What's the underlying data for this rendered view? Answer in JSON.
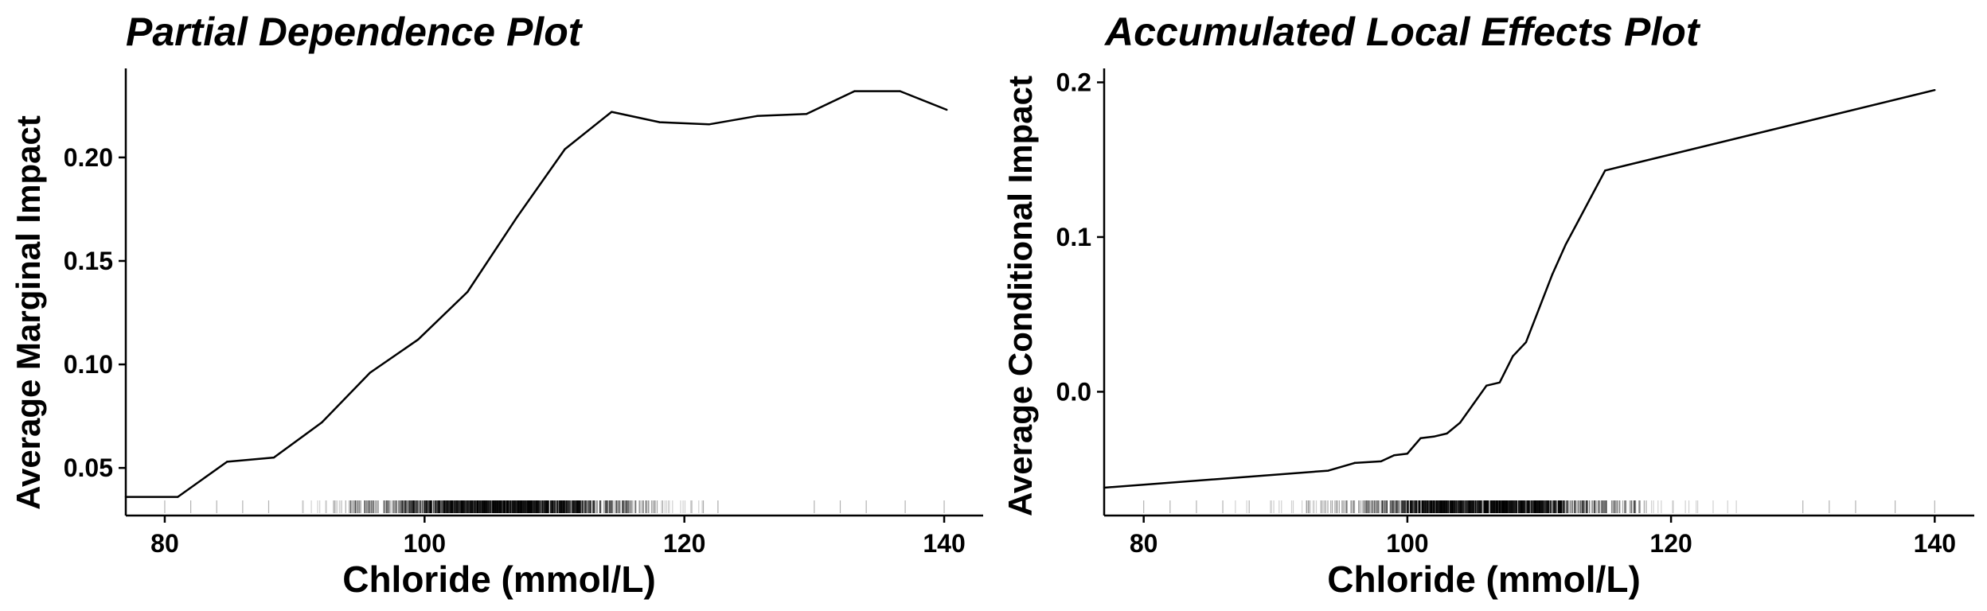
{
  "chart_data": [
    {
      "type": "line",
      "title": "Partial Dependence Plot",
      "xlabel": "Chloride (mmol/L)",
      "ylabel": "Average Marginal Impact",
      "xlim": [
        77,
        143
      ],
      "ylim": [
        0.027,
        0.243
      ],
      "xticks": [
        {
          "value": 80,
          "label": "80"
        },
        {
          "value": 100,
          "label": "100"
        },
        {
          "value": 120,
          "label": "120"
        },
        {
          "value": 140,
          "label": "140"
        }
      ],
      "yticks": [
        {
          "value": 0.05,
          "label": "0.05"
        },
        {
          "value": 0.1,
          "label": "0.10"
        },
        {
          "value": 0.15,
          "label": "0.15"
        },
        {
          "value": 0.2,
          "label": "0.20"
        }
      ],
      "x": [
        77,
        81,
        84.8,
        88.4,
        92.1,
        95.8,
        99.5,
        103.3,
        107.1,
        110.8,
        114.4,
        118.1,
        121.9,
        125.6,
        129.4,
        133.1,
        136.6,
        140.2
      ],
      "y": [
        0.036,
        0.036,
        0.053,
        0.055,
        0.072,
        0.096,
        0.112,
        0.135,
        0.171,
        0.204,
        0.222,
        0.217,
        0.216,
        0.22,
        0.221,
        0.232,
        0.232,
        0.223
      ],
      "rug": true
    },
    {
      "type": "line",
      "title": "Accumulated Local Effects Plot",
      "xlabel": "Chloride (mmol/L)",
      "ylabel": "Average Conditional Impact",
      "xlim": [
        77,
        143
      ],
      "ylim": [
        -0.08,
        0.209
      ],
      "xticks": [
        {
          "value": 80,
          "label": "80"
        },
        {
          "value": 100,
          "label": "100"
        },
        {
          "value": 120,
          "label": "120"
        },
        {
          "value": 140,
          "label": "140"
        }
      ],
      "yticks": [
        {
          "value": 0.0,
          "label": "0.0"
        },
        {
          "value": 0.1,
          "label": "0.1"
        },
        {
          "value": 0.2,
          "label": "0.2"
        }
      ],
      "x": [
        77,
        94,
        96,
        98,
        99,
        100,
        101,
        102,
        103,
        104,
        105,
        106,
        107,
        108,
        109,
        110,
        111,
        112,
        113,
        114,
        115,
        140
      ],
      "y": [
        -0.062,
        -0.051,
        -0.046,
        -0.045,
        -0.041,
        -0.04,
        -0.03,
        -0.029,
        -0.027,
        -0.02,
        -0.008,
        0.004,
        0.006,
        0.023,
        0.032,
        0.054,
        0.076,
        0.095,
        0.111,
        0.127,
        0.143,
        0.195
      ],
      "rug": true
    }
  ]
}
